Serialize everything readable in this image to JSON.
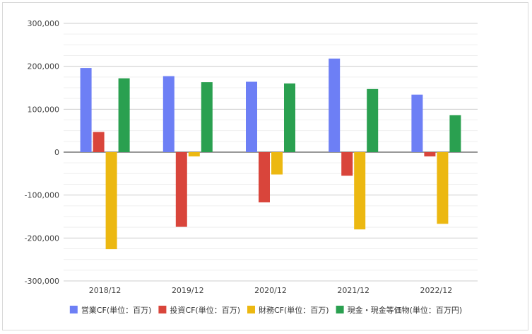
{
  "chart_data": {
    "type": "bar",
    "categories": [
      "2018/12",
      "2019/12",
      "2020/12",
      "2021/12",
      "2022/12"
    ],
    "series": [
      {
        "name": "営業CF(単位：百万)",
        "color": "#6d7ff5",
        "values": [
          196000,
          177000,
          164000,
          218000,
          134000
        ]
      },
      {
        "name": "投資CF(単位：百万)",
        "color": "#d9453b",
        "values": [
          47000,
          -174000,
          -117000,
          -55000,
          -10000
        ]
      },
      {
        "name": "財務CF(単位：百万)",
        "color": "#ecb811",
        "values": [
          -226000,
          -10000,
          -52000,
          -180000,
          -167000
        ]
      },
      {
        "name": "現金・現金等価物(単位：百万円)",
        "color": "#2aa050",
        "values": [
          172000,
          163000,
          160000,
          147000,
          86000
        ]
      }
    ],
    "ylim": [
      -300000,
      300000
    ],
    "yticks": [
      "300,000",
      "200,000",
      "100,000",
      "0",
      "-100,000",
      "-200,000",
      "-300,000"
    ],
    "grid": true,
    "legend_position": "bottom"
  }
}
